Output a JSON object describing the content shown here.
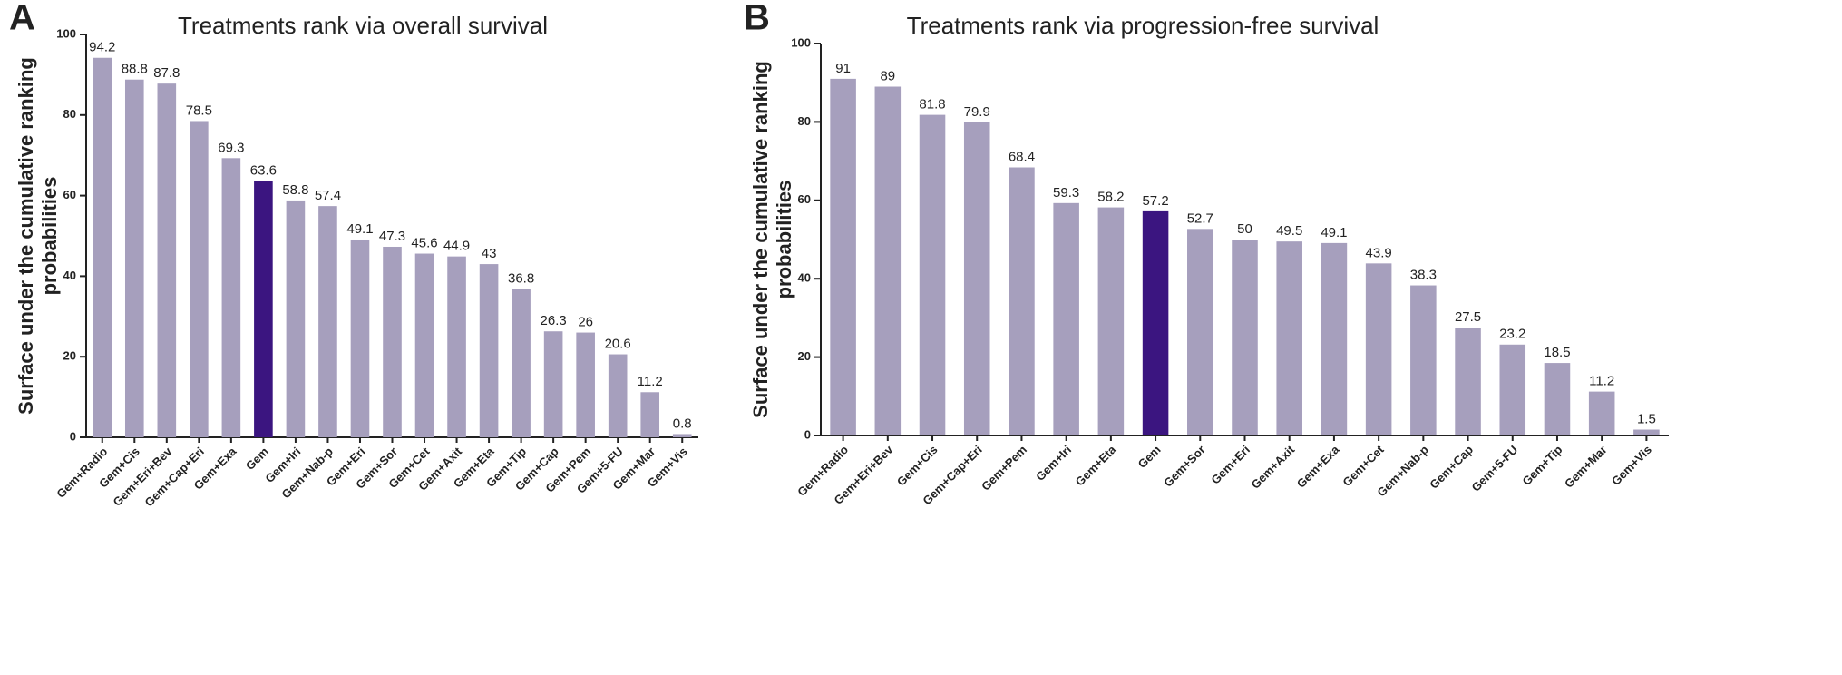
{
  "chart_data": [
    {
      "type": "bar",
      "panel": "A",
      "title": "Treatments rank via overall survival",
      "ylabel": [
        "Surface under the cumulative ranking",
        "probabilities"
      ],
      "categories": [
        "Gem+Radio",
        "Gem+Cis",
        "Gem+Eri+Bev",
        "Gem+Cap+Eri",
        "Gem+Exa",
        "Gem",
        "Gem+Iri",
        "Gem+Nab-p",
        "Gem+Eri",
        "Gem+Sor",
        "Gem+Cet",
        "Gem+Axit",
        "Gem+Eta",
        "Gem+Tip",
        "Gem+Cap",
        "Gem+Pem",
        "Gem+5-FU",
        "Gem+Mar",
        "Gem+Vis"
      ],
      "values": [
        94.2,
        88.8,
        87.8,
        78.5,
        69.3,
        63.6,
        58.8,
        57.4,
        49.1,
        47.3,
        45.6,
        44.9,
        43,
        36.8,
        26.3,
        26,
        20.6,
        11.2,
        0.8
      ],
      "colors": [
        "#a69fbd",
        "#a69fbd",
        "#a69fbd",
        "#a69fbd",
        "#a69fbd",
        "#3b1580",
        "#a69fbd",
        "#a69fbd",
        "#a69fbd",
        "#a69fbd",
        "#a69fbd",
        "#a69fbd",
        "#a69fbd",
        "#a69fbd",
        "#a69fbd",
        "#a69fbd",
        "#a69fbd",
        "#a69fbd",
        "#a69fbd"
      ],
      "ylim": [
        0,
        100
      ],
      "yticks": [
        0,
        20,
        40,
        60,
        80,
        100
      ]
    },
    {
      "type": "bar",
      "panel": "B",
      "title": "Treatments rank via progression-free survival",
      "ylabel": [
        "Surface under the cumulative ranking",
        "probabilities"
      ],
      "categories": [
        "Gem+Radio",
        "Gem+Eri+Bev",
        "Gem+Cis",
        "Gem+Cap+Eri",
        "Gem+Pem",
        "Gem+Iri",
        "Gem+Eta",
        "Gem",
        "Gem+Sor",
        "Gem+Eri",
        "Gem+Axit",
        "Gem+Exa",
        "Gem+Cet",
        "Gem+Nab-p",
        "Gem+Cap",
        "Gem+5-FU",
        "Gem+Tip",
        "Gem+Mar",
        "Gem+Vis"
      ],
      "values": [
        91,
        89,
        81.8,
        79.9,
        68.4,
        59.3,
        58.2,
        57.2,
        52.7,
        50,
        49.5,
        49.1,
        43.9,
        38.3,
        27.5,
        23.2,
        18.5,
        11.2,
        1.5
      ],
      "colors": [
        "#a69fbd",
        "#a69fbd",
        "#a69fbd",
        "#a69fbd",
        "#a69fbd",
        "#a69fbd",
        "#a69fbd",
        "#3b1580",
        "#a69fbd",
        "#a69fbd",
        "#a69fbd",
        "#a69fbd",
        "#a69fbd",
        "#a69fbd",
        "#a69fbd",
        "#a69fbd",
        "#a69fbd",
        "#a69fbd",
        "#a69fbd"
      ],
      "ylim": [
        0,
        100
      ],
      "yticks": [
        0,
        20,
        40,
        60,
        80,
        100
      ]
    }
  ]
}
